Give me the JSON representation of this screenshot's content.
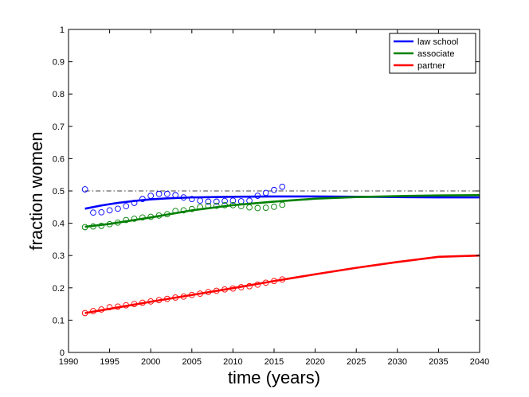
{
  "chart_data": {
    "type": "line",
    "title": "",
    "xlabel": "time (years)",
    "ylabel": "fraction women",
    "xlim": [
      1990,
      2040
    ],
    "ylim": [
      0,
      1
    ],
    "x_ticks": [
      1990,
      1995,
      2000,
      2005,
      2010,
      2015,
      2020,
      2025,
      2030,
      2035,
      2040
    ],
    "y_ticks": [
      0,
      0.1,
      0.2,
      0.3,
      0.4,
      0.5,
      0.6,
      0.7,
      0.8,
      0.9,
      1
    ],
    "y_tick_labels": [
      "0",
      "0.1",
      "0.2",
      "0.3",
      "0.4",
      "0.5",
      "0.6",
      "0.7",
      "0.8",
      "0.9",
      "1"
    ],
    "grid": false,
    "legend_position": "top-right",
    "reference_line": {
      "y": 0.5,
      "style": "dash-dot",
      "color": "#000000",
      "x_range": [
        1992,
        2040
      ]
    },
    "series": [
      {
        "name": "law school",
        "color": "#0000ff",
        "model_x": [
          1992,
          1994,
          1996,
          1998,
          2000,
          2002,
          2005,
          2010,
          2015,
          2020,
          2025,
          2030,
          2035,
          2040
        ],
        "model_y": [
          0.445,
          0.455,
          0.463,
          0.469,
          0.474,
          0.477,
          0.48,
          0.482,
          0.483,
          0.483,
          0.482,
          0.481,
          0.48,
          0.48
        ],
        "obs_x": [
          1992,
          1993,
          1994,
          1995,
          1996,
          1997,
          1998,
          1999,
          2000,
          2001,
          2002,
          2003,
          2004,
          2005,
          2006,
          2007,
          2008,
          2009,
          2010,
          2011,
          2012,
          2013,
          2014,
          2015,
          2016
        ],
        "obs_y": [
          0.505,
          0.433,
          0.434,
          0.44,
          0.445,
          0.453,
          0.463,
          0.475,
          0.485,
          0.491,
          0.491,
          0.487,
          0.48,
          0.475,
          0.47,
          0.467,
          0.467,
          0.469,
          0.47,
          0.468,
          0.47,
          0.485,
          0.494,
          0.503,
          0.513
        ]
      },
      {
        "name": "associate",
        "color": "#008000",
        "model_x": [
          1992,
          1995,
          2000,
          2005,
          2010,
          2015,
          2020,
          2025,
          2030,
          2035,
          2040
        ],
        "model_y": [
          0.389,
          0.398,
          0.418,
          0.44,
          0.456,
          0.467,
          0.476,
          0.481,
          0.484,
          0.486,
          0.487
        ],
        "obs_x": [
          1992,
          1993,
          1994,
          1995,
          1996,
          1997,
          1998,
          1999,
          2000,
          2001,
          2002,
          2003,
          2004,
          2005,
          2006,
          2007,
          2008,
          2009,
          2010,
          2011,
          2012,
          2013,
          2014,
          2015,
          2016
        ],
        "obs_y": [
          0.388,
          0.39,
          0.392,
          0.397,
          0.402,
          0.41,
          0.414,
          0.418,
          0.42,
          0.424,
          0.428,
          0.438,
          0.44,
          0.444,
          0.45,
          0.454,
          0.454,
          0.456,
          0.456,
          0.453,
          0.449,
          0.447,
          0.448,
          0.451,
          0.457
        ]
      },
      {
        "name": "partner",
        "color": "#ff0000",
        "model_x": [
          1992,
          1995,
          2000,
          2005,
          2010,
          2015,
          2020,
          2025,
          2030,
          2035,
          2040
        ],
        "model_y": [
          0.122,
          0.135,
          0.157,
          0.178,
          0.199,
          0.221,
          0.242,
          0.262,
          0.28,
          0.296,
          0.3
        ],
        "obs_x": [
          1992,
          1993,
          1994,
          1995,
          1996,
          1997,
          1998,
          1999,
          2000,
          2001,
          2002,
          2003,
          2004,
          2005,
          2006,
          2007,
          2008,
          2009,
          2010,
          2011,
          2012,
          2013,
          2014,
          2015,
          2016
        ],
        "obs_y": [
          0.122,
          0.128,
          0.133,
          0.14,
          0.142,
          0.146,
          0.15,
          0.154,
          0.158,
          0.162,
          0.166,
          0.17,
          0.173,
          0.178,
          0.182,
          0.187,
          0.191,
          0.195,
          0.198,
          0.202,
          0.205,
          0.21,
          0.216,
          0.221,
          0.226
        ]
      }
    ]
  }
}
